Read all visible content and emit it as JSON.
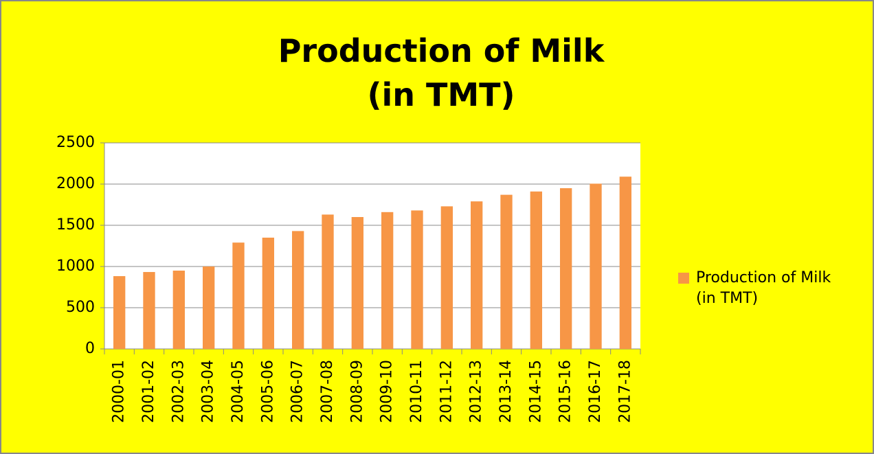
{
  "chart_data": {
    "type": "bar",
    "title": "Production of Milk (in TMT)",
    "categories": [
      "2000-01",
      "2001-02",
      "2002-03",
      "2003-04",
      "2004-05",
      "2005-06",
      "2006-07",
      "2007-08",
      "2008-09",
      "2009-10",
      "2010-11",
      "2011-12",
      "2012-13",
      "2013-14",
      "2014-15",
      "2015-16",
      "2016-17",
      "2017-18"
    ],
    "series": [
      {
        "name": "Production of Milk (in TMT)",
        "color": "#f79646",
        "values": [
          883,
          933,
          950,
          1000,
          1290,
          1350,
          1430,
          1630,
          1600,
          1660,
          1680,
          1730,
          1790,
          1870,
          1910,
          1950,
          2005,
          2090
        ]
      }
    ],
    "ylim": [
      0,
      2500
    ],
    "yticks": [
      0,
      500,
      1000,
      1500,
      2000,
      2500
    ],
    "grid": true,
    "legend": "right"
  }
}
